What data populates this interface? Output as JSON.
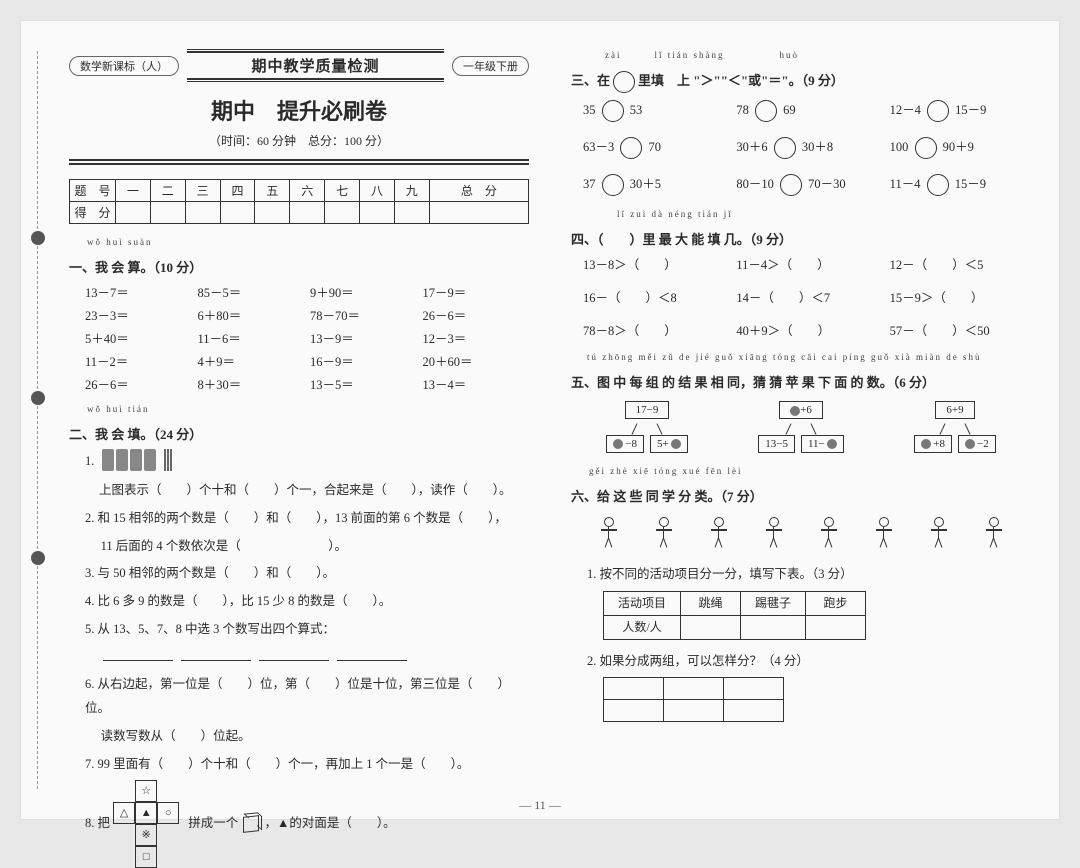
{
  "header": {
    "left_pill": "数学新课标（人）",
    "mid_title": "期中教学质量检测",
    "right_pill": "一年级下册"
  },
  "title": {
    "main": "期中　提升必刷卷",
    "sub": "（时间：60 分钟　总分：100 分）"
  },
  "score_table": {
    "row1": [
      "题　号",
      "一",
      "二",
      "三",
      "四",
      "五",
      "六",
      "七",
      "八",
      "九",
      "总　分"
    ],
    "row2_first": "得　分"
  },
  "s1": {
    "ruby": "wǒ  huì  suàn",
    "title": "一、我 会 算。（10 分）",
    "items": [
      "13－7＝",
      "85－5＝",
      "9＋90＝",
      "17－9＝",
      "23－3＝",
      "6＋80＝",
      "78－70＝",
      "26－6＝",
      "5＋40＝",
      "11－6＝",
      "13－9＝",
      "12－3＝",
      "11－2＝",
      "4＋9＝",
      "16－9＝",
      "20＋60＝",
      "26－6＝",
      "8＋30＝",
      "13－5＝",
      "13－4＝"
    ]
  },
  "s2": {
    "ruby": "wǒ  huì  tián",
    "title": "二、我 会 填。（24 分）",
    "q1b": "上图表示（　　）个十和（　　）个一，合起来是（　　），读作（　　）。",
    "q2": "2. 和 15 相邻的两个数是（　　）和（　　），13 前面的第 6 个数是（　　），",
    "q2b": "　 11 后面的 4 个数依次是（　　　　　　　）。",
    "q3": "3. 与 50 相邻的两个数是（　　）和（　　）。",
    "q4": "4. 比 6 多 9 的数是（　　），比 15 少 8 的数是（　　）。",
    "q5": "5. 从 13、5、7、8 中选 3 个数写出四个算式：",
    "q6": "6. 从右边起，第一位是（　　）位，第（　　）位是十位，第三位是（　　）位。",
    "q6b": "　 读数写数从（　　）位起。",
    "q7": "7. 99 里面有（　　）个十和（　　）个一，再加上 1 个一是（　　）。",
    "q8a": "8. 把",
    "q8b": "拼成一个",
    "q8c": "，▲的对面是（　　）。"
  },
  "s3": {
    "ruby": "zài　　　lǐ tián shàng　　　　　huò",
    "title": "三、在　　里填　上 \"＞\"\"＜\"或\"＝\"。（9 分）",
    "rows": [
      [
        "35",
        "53",
        "78",
        "69",
        "12－4",
        "15－9"
      ],
      [
        "63－3",
        "70",
        "30＋6",
        "30＋8",
        "100",
        "90＋9"
      ],
      [
        "37",
        "30＋5",
        "80－10",
        "70－30",
        "11－4",
        "15－9"
      ]
    ]
  },
  "s4": {
    "ruby": "lǐ  zuì  dà  néng  tián  jǐ",
    "title": "四、（　　）里 最 大 能 填 几。（9 分）",
    "rows": [
      [
        "13－8＞（　　）",
        "11－4＞（　　）",
        "12－（　　）＜5"
      ],
      [
        "16－（　　）＜8",
        "14－（　　）＜7",
        "15－9＞（　　）"
      ],
      [
        "78－8＞（　　）",
        "40＋9＞（　　）",
        "57－（　　）＜50"
      ]
    ]
  },
  "s5": {
    "ruby": "tú zhōng měi zǔ de jié guǒ xiāng tóng cāi cai píng guǒ xià miàn de shù",
    "title": "五、图 中 每 组 的 结 果 相 同，猜 猜 苹 果 下 面 的 数。（6 分）",
    "trees": [
      {
        "top": "17−9",
        "l": "−8",
        "r": "5+"
      },
      {
        "top_apple_suffix": "+6",
        "l": "13−5",
        "r": "11−"
      },
      {
        "top": "6+9",
        "l": "+8",
        "r": "−2"
      }
    ]
  },
  "s6": {
    "ruby": "gěi  zhè  xiē  tóng  xué  fēn  lèi",
    "title": "六、给 这 些 同 学 分 类。（7 分）",
    "q1": "1. 按不同的活动项目分一分，填写下表。（3 分）",
    "tbl_row1": [
      "活动项目",
      "跳绳",
      "踢毽子",
      "跑步"
    ],
    "tbl_row2_first": "人数/人",
    "q2": "2. 如果分成两组，可以怎样分？（4 分）"
  },
  "net_faces": {
    "top": "☆",
    "left": "△",
    "mid": "▲",
    "right": "○",
    "bot1": "※",
    "bot2": "□"
  },
  "page_num": "— 11 —"
}
